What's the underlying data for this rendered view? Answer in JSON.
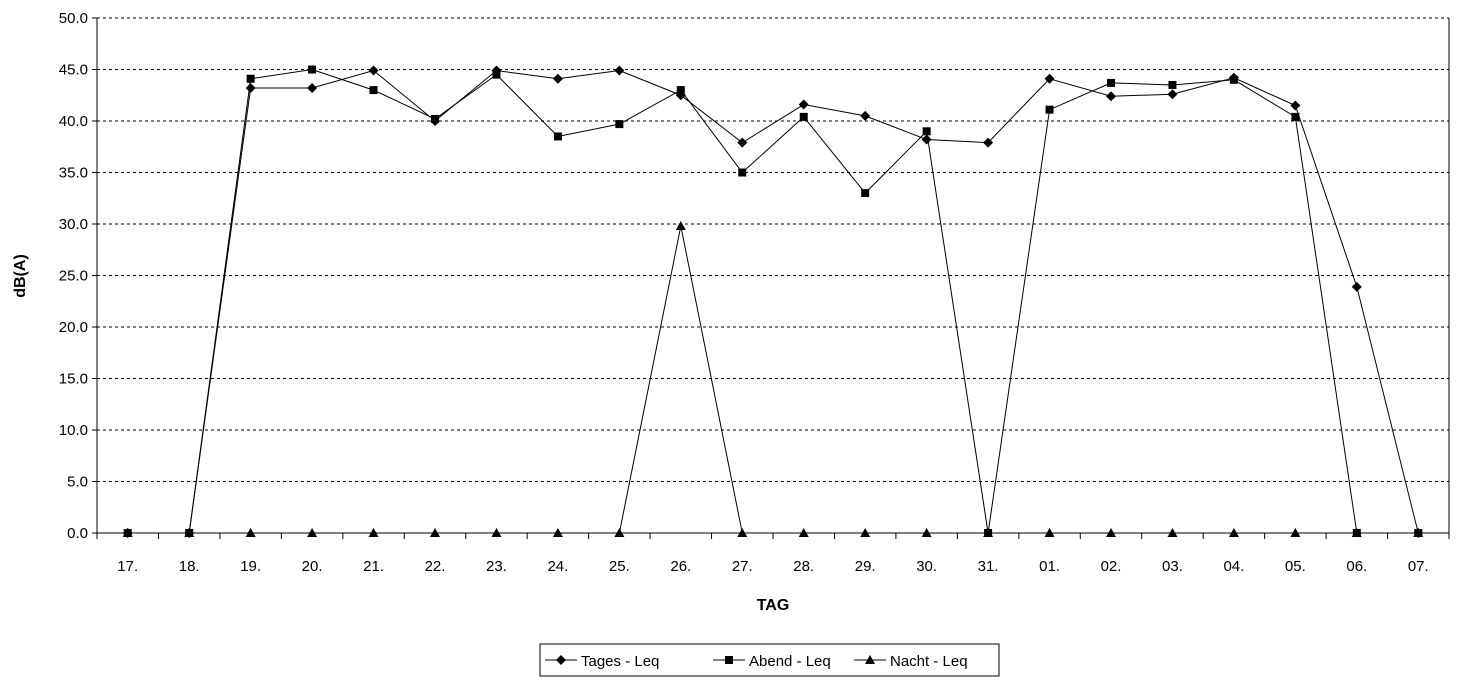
{
  "chart_data": {
    "type": "line",
    "title": "",
    "xlabel": "TAG",
    "ylabel": "dB(A)",
    "ylim": [
      0,
      50
    ],
    "ytick_step": 5,
    "ytick_labels": [
      "0.0",
      "5.0",
      "10.0",
      "15.0",
      "20.0",
      "25.0",
      "30.0",
      "35.0",
      "40.0",
      "45.0",
      "50.0"
    ],
    "grid": "horizontal dashed",
    "legend_position": "bottom-center",
    "line_color": "#000000",
    "categories": [
      "17.",
      "18.",
      "19.",
      "20.",
      "21.",
      "22.",
      "23.",
      "24.",
      "25.",
      "26.",
      "27.",
      "28.",
      "29.",
      "30.",
      "31.",
      "01.",
      "02.",
      "03.",
      "04.",
      "05.",
      "06.",
      "07."
    ],
    "series": [
      {
        "name": "Tages - Leq",
        "marker": "diamond",
        "values": [
          0.0,
          0.0,
          43.2,
          43.2,
          44.9,
          40.0,
          44.9,
          44.1,
          44.9,
          42.5,
          37.9,
          41.6,
          40.5,
          38.2,
          37.9,
          44.1,
          42.4,
          42.6,
          44.2,
          41.5,
          23.9,
          0.0
        ]
      },
      {
        "name": "Abend - Leq",
        "marker": "square",
        "values": [
          0.0,
          0.0,
          44.1,
          45.0,
          43.0,
          40.2,
          44.5,
          38.5,
          39.7,
          43.0,
          35.0,
          40.4,
          33.0,
          39.0,
          0.0,
          41.1,
          43.7,
          43.5,
          44.0,
          40.4,
          0.0,
          0.0
        ]
      },
      {
        "name": "Nacht - Leq",
        "marker": "triangle",
        "values": [
          0.0,
          0.0,
          0.0,
          0.0,
          0.0,
          0.0,
          0.0,
          0.0,
          0.0,
          29.8,
          0.0,
          0.0,
          0.0,
          0.0,
          0.0,
          0.0,
          0.0,
          0.0,
          0.0,
          0.0,
          0.0,
          0.0
        ]
      }
    ]
  }
}
